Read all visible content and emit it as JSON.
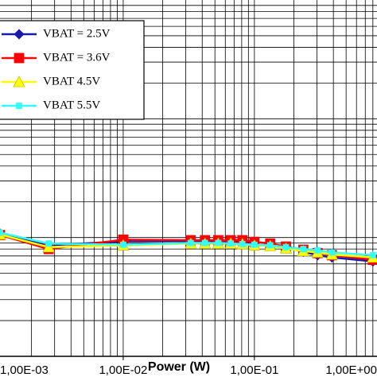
{
  "chart_data": {
    "type": "line",
    "x_label": "Power (W)",
    "x_log": true,
    "y_log": true,
    "grid": true,
    "legend": "upper left",
    "xlim": [
      0.00115,
      0.86
    ],
    "ylim": [
      1,
      1000
    ],
    "xticks": [
      {
        "value": 0.001,
        "label": "1,00E-03"
      },
      {
        "value": 0.01,
        "label": "1,00E-02"
      },
      {
        "value": 0.1,
        "label": "1,00E-01"
      },
      {
        "value": 1,
        "label": "1,00E+00"
      }
    ],
    "xgrid": [
      0.002,
      0.003,
      0.004,
      0.005,
      0.006,
      0.007,
      0.008,
      0.009,
      0.01,
      0.02,
      0.03,
      0.04,
      0.05,
      0.06,
      0.07,
      0.08,
      0.09,
      0.1,
      0.2,
      0.3,
      0.4,
      0.5,
      0.6,
      0.7,
      0.8
    ],
    "ygrid": [
      2,
      3,
      4,
      5,
      6,
      7,
      8,
      9,
      10,
      20,
      30,
      40,
      50,
      60,
      70,
      80,
      90,
      100,
      200,
      300,
      400,
      500,
      600,
      700,
      800,
      900
    ],
    "x": [
      0.00115,
      0.0027,
      0.01,
      0.0327,
      0.042,
      0.053,
      0.066,
      0.081,
      0.1,
      0.132,
      0.174,
      0.236,
      0.303,
      0.39,
      0.8
    ],
    "series": [
      {
        "name": "VBAT = 2.5V",
        "color": "#1a1aa8",
        "marker": "diamond",
        "values": [
          10.8,
          8.6,
          9.3,
          9.3,
          9.3,
          9.3,
          9.3,
          9.2,
          9.2,
          8.9,
          8.3,
          7.6,
          7.1,
          6.8,
          6.3
        ]
      },
      {
        "name": "VBAT = 3.6V",
        "color": "#ff0000",
        "marker": "square",
        "values": [
          10.5,
          8.0,
          9.6,
          9.5,
          9.5,
          9.5,
          9.5,
          9.5,
          9.2,
          8.9,
          8.4,
          7.9,
          7.4,
          7.1,
          6.5
        ]
      },
      {
        "name": "VBAT 4.5V",
        "color": "#ffff00",
        "marker": "triangle",
        "values": [
          10.6,
          8.3,
          8.6,
          8.9,
          8.9,
          8.9,
          8.9,
          8.8,
          8.6,
          8.5,
          8.1,
          7.7,
          7.5,
          7.2,
          6.8
        ]
      },
      {
        "name": "VBAT 5.5V",
        "color": "#33ffff",
        "marker": "smallsquare",
        "values": [
          11.0,
          8.9,
          8.7,
          9.0,
          9.0,
          9.0,
          8.9,
          8.8,
          8.7,
          8.6,
          8.3,
          8.0,
          7.8,
          7.5,
          7.1
        ]
      }
    ]
  }
}
